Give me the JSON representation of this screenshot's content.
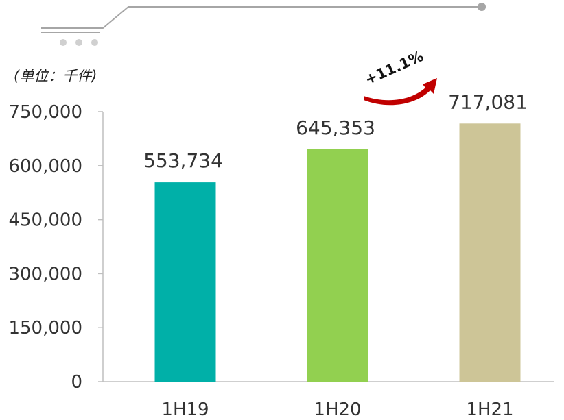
{
  "chart_data": {
    "type": "bar",
    "unit_label": "(单位：千件)",
    "categories": [
      "1H19",
      "1H20",
      "1H21"
    ],
    "values": [
      553734,
      645353,
      717081
    ],
    "value_labels": [
      "553,734",
      "645,353",
      "717,081"
    ],
    "colors": [
      "#00b0a8",
      "#92d050",
      "#cdc597"
    ],
    "ylim": [
      0,
      750000
    ],
    "yticks": [
      0,
      150000,
      300000,
      450000,
      600000,
      750000
    ],
    "ytick_labels": [
      "0",
      "150,000",
      "300,000",
      "450,000",
      "600,000",
      "750,000"
    ],
    "grid": false,
    "annotation": {
      "text": "+11.1%",
      "color": "#c00000"
    },
    "decoration": {
      "color": "#a6a6a6"
    }
  }
}
